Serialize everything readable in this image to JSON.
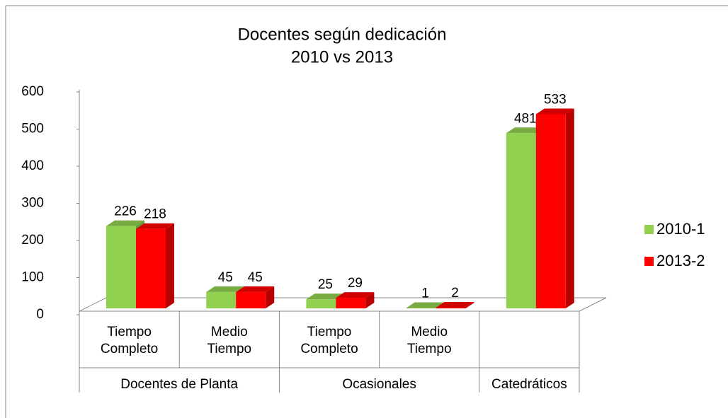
{
  "chart_data": {
    "type": "bar3d",
    "title": "Docentes según dedicación",
    "subtitle": "2010 vs 2013",
    "groups": [
      {
        "name": "Docentes de Planta",
        "categories": [
          "Tiempo Completo",
          "Medio Tiempo"
        ]
      },
      {
        "name": "Ocasionales",
        "categories": [
          "Tiempo Completo",
          "Medio Tiempo"
        ]
      },
      {
        "name": "Catedráticos",
        "categories": [
          null
        ]
      }
    ],
    "series": [
      {
        "name": "2010-1",
        "color": "#92d050",
        "values": [
          226,
          45,
          25,
          1,
          481
        ]
      },
      {
        "name": "2013-2",
        "color": "#ff0000",
        "values": [
          218,
          45,
          29,
          2,
          533
        ]
      }
    ],
    "ylim": [
      0,
      600
    ],
    "yticks": [
      0,
      100,
      200,
      300,
      400,
      500,
      600
    ],
    "legend": "right"
  }
}
